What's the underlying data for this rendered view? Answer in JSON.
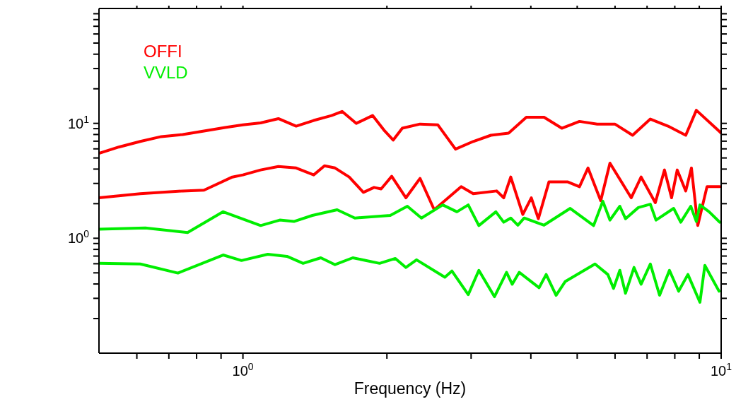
{
  "chart_data": {
    "type": "line",
    "xlabel": "Frequency (Hz)",
    "log": "xy",
    "legend": "top left",
    "xlim": [
      0.5,
      10
    ],
    "ylim": [
      0.1,
      100
    ],
    "xticks": [
      {
        "value": 0.6,
        "label": null
      },
      {
        "value": 0.7,
        "label": null
      },
      {
        "value": 0.8,
        "label": null
      },
      {
        "value": 0.9,
        "label": null
      },
      {
        "value": 1,
        "label": "10$^{0}$"
      },
      {
        "value": 2,
        "label": null
      },
      {
        "value": 3,
        "label": null
      },
      {
        "value": 4,
        "label": null
      },
      {
        "value": 5,
        "label": null
      },
      {
        "value": 6,
        "label": null
      },
      {
        "value": 7,
        "label": null
      },
      {
        "value": 8,
        "label": null
      },
      {
        "value": 9,
        "label": null
      },
      {
        "value": 10,
        "label": "10$^{1}$"
      }
    ],
    "yticks": [
      {
        "value": 0.2,
        "label": null
      },
      {
        "value": 0.3,
        "label": null
      },
      {
        "value": 0.4,
        "label": null
      },
      {
        "value": 0.5,
        "label": null
      },
      {
        "value": 0.6,
        "label": null
      },
      {
        "value": 0.7,
        "label": null
      },
      {
        "value": 0.8,
        "label": null
      },
      {
        "value": 0.9,
        "label": null
      },
      {
        "value": 1,
        "label": "10$^{0}$"
      },
      {
        "value": 2,
        "label": null
      },
      {
        "value": 3,
        "label": null
      },
      {
        "value": 4,
        "label": null
      },
      {
        "value": 5,
        "label": null
      },
      {
        "value": 6,
        "label": null
      },
      {
        "value": 7,
        "label": null
      },
      {
        "value": 8,
        "label": null
      },
      {
        "value": 9,
        "label": null
      },
      {
        "value": 10,
        "label": "10$^{1}$"
      },
      {
        "value": 20,
        "label": null
      },
      {
        "value": 30,
        "label": null
      },
      {
        "value": 40,
        "label": null
      },
      {
        "value": 50,
        "label": null
      },
      {
        "value": 60,
        "label": null
      },
      {
        "value": 70,
        "label": null
      },
      {
        "value": 80,
        "label": null
      },
      {
        "value": 90,
        "label": null
      }
    ],
    "series": [
      {
        "name": "OFFI",
        "color": "#ff0000",
        "x": [
          0.5,
          0.55,
          0.61,
          0.675,
          0.748,
          0.829,
          0.918,
          1.0,
          1.089,
          1.186,
          1.292,
          1.406,
          1.532,
          1.612,
          1.726,
          1.867,
          1.979,
          2.062,
          2.154,
          2.346,
          2.555,
          2.783,
          3.031,
          3.3,
          3.594,
          3.914,
          4.262,
          4.642,
          5.055,
          5.505,
          5.995,
          6.529,
          7.111,
          7.743,
          8.433,
          8.874,
          10
        ],
        "values": [
          5.49,
          6.22,
          6.96,
          7.67,
          8.0,
          8.58,
          9.2,
          9.72,
          10.1,
          11.0,
          9.46,
          10.6,
          11.7,
          12.7,
          10.0,
          11.7,
          8.58,
          7.16,
          9.07,
          9.86,
          9.72,
          5.97,
          6.96,
          7.88,
          8.23,
          11.3,
          11.3,
          9.07,
          10.4,
          9.86,
          9.86,
          7.88,
          10.9,
          9.46,
          7.88,
          13.0,
          8.23
        ]
      },
      {
        "color": "#ff0000",
        "x": [
          0.5,
          0.55,
          0.61,
          0.748,
          0.829,
          0.95,
          1.0,
          1.089,
          1.186,
          1.292,
          1.406,
          1.481,
          1.558,
          1.668,
          1.786,
          1.88,
          1.945,
          2.047,
          2.192,
          2.346,
          2.512,
          2.86,
          3.031,
          3.393,
          3.51,
          3.631,
          3.848,
          4.009,
          4.147,
          4.365,
          4.77,
          5.055,
          5.267,
          5.6,
          5.854,
          6.485,
          6.802,
          7.283,
          7.612,
          7.876,
          8.094,
          8.433,
          8.667,
          8.936,
          9.341,
          9.93
        ],
        "values": [
          2.25,
          2.34,
          2.44,
          2.58,
          2.62,
          3.41,
          3.56,
          3.93,
          4.21,
          4.09,
          3.56,
          4.27,
          4.09,
          3.41,
          2.51,
          2.77,
          2.69,
          3.46,
          2.25,
          3.32,
          1.77,
          2.81,
          2.44,
          2.58,
          2.25,
          3.41,
          1.61,
          2.25,
          1.48,
          3.1,
          3.1,
          2.81,
          4.09,
          2.12,
          4.51,
          2.25,
          3.41,
          2.04,
          3.93,
          2.25,
          3.93,
          2.58,
          4.09,
          1.29,
          2.81,
          2.81
        ]
      },
      {
        "name": "VVLD",
        "color": "#00ee00",
        "x": [
          0.5,
          0.625,
          0.766,
          0.909,
          1.089,
          1.194,
          1.278,
          1.397,
          1.574,
          1.714,
          2.033,
          2.207,
          2.362,
          2.617,
          2.802,
          2.959,
          3.114,
          3.38,
          3.51,
          3.631,
          3.757,
          3.874,
          4.262,
          4.835,
          5.411,
          5.657,
          5.854,
          6.139,
          6.31,
          6.711,
          7.111,
          7.308,
          7.956,
          8.232,
          8.639,
          8.874,
          9.029,
          9.437,
          9.93
        ],
        "values": [
          1.2,
          1.23,
          1.12,
          1.7,
          1.29,
          1.44,
          1.4,
          1.58,
          1.77,
          1.5,
          1.58,
          1.9,
          1.5,
          1.95,
          1.7,
          1.95,
          1.29,
          1.7,
          1.38,
          1.5,
          1.3,
          1.5,
          1.3,
          1.82,
          1.29,
          2.1,
          1.44,
          1.9,
          1.48,
          1.85,
          1.98,
          1.44,
          1.82,
          1.38,
          1.9,
          1.4,
          1.95,
          1.7,
          1.38
        ]
      },
      {
        "color": "#00ee00",
        "x": [
          0.5,
          0.61,
          0.731,
          0.909,
          0.993,
          1.127,
          1.236,
          1.336,
          1.455,
          1.558,
          1.697,
          1.931,
          2.083,
          2.192,
          2.307,
          2.644,
          2.735,
          2.959,
          3.114,
          3.357,
          3.558,
          3.656,
          3.783,
          4.162,
          4.306,
          4.517,
          4.722,
          5.448,
          5.794,
          5.955,
          6.139,
          6.31,
          6.574,
          6.802,
          7.111,
          7.434,
          7.796,
          8.149,
          8.521,
          9.029,
          9.245,
          9.899
        ],
        "values": [
          0.605,
          0.597,
          0.498,
          0.715,
          0.64,
          0.726,
          0.696,
          0.605,
          0.676,
          0.589,
          0.676,
          0.605,
          0.667,
          0.557,
          0.649,
          0.458,
          0.519,
          0.323,
          0.526,
          0.31,
          0.505,
          0.398,
          0.505,
          0.371,
          0.484,
          0.319,
          0.421,
          0.597,
          0.484,
          0.366,
          0.526,
          0.332,
          0.557,
          0.398,
          0.597,
          0.319,
          0.526,
          0.346,
          0.484,
          0.277,
          0.58,
          0.346
        ]
      }
    ]
  }
}
